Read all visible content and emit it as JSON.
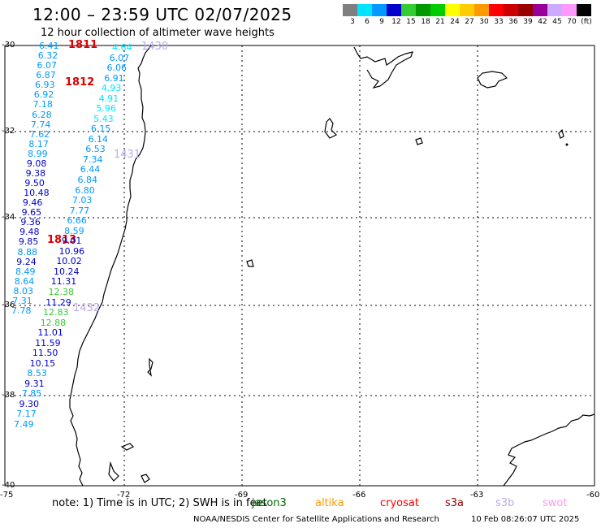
{
  "title": "12:00 – 23:59 UTC 02/07/2025",
  "subtitle": "12 hour collection of altimeter wave heights",
  "scale": {
    "colors": [
      "#7f7f7f",
      "#00e5ff",
      "#0099ff",
      "#0000cc",
      "#33cc33",
      "#009900",
      "#00cc00",
      "#ffff00",
      "#ffcc00",
      "#ff9900",
      "#ff0000",
      "#cc0000",
      "#990000",
      "#990099",
      "#ccaaff",
      "#ff99ff",
      "#000000"
    ],
    "labels": [
      "3",
      "6",
      "9",
      "12",
      "15",
      "18",
      "21",
      "24",
      "27",
      "30",
      "33",
      "36",
      "39",
      "42",
      "45",
      "70",
      "(ft)"
    ]
  },
  "lat_labels": [
    "-30",
    "-32",
    "-34",
    "-36",
    "-38",
    "-40"
  ],
  "lon_labels": [
    "-75",
    "-72",
    "-69",
    "-66",
    "-63",
    "-60"
  ],
  "pass_times": [
    {
      "text": "1811",
      "color": "#dd0000"
    },
    {
      "text": "1812",
      "color": "#dd0000"
    },
    {
      "text": "1813",
      "color": "#dd0000"
    },
    {
      "text": "1430",
      "color": "#bbaaee"
    },
    {
      "text": "1431",
      "color": "#bbaaee"
    },
    {
      "text": "1432",
      "color": "#bbaaee"
    }
  ],
  "track_cryosat": [
    "6.41",
    "6.32",
    "6.07",
    "6.87",
    "6.93",
    "6.92",
    "7.18",
    "6.28",
    "7.74",
    "7.62",
    "8.17",
    "8.99",
    "9.08",
    "9.38",
    "9.50",
    "10.48",
    "9.46",
    "9.65",
    "9.36",
    "9.48",
    "9.85",
    "8.88",
    "9.24",
    "8.49",
    "8.64",
    "8.03",
    "7.31",
    "7.78"
  ],
  "track_s3b": [
    "4.64",
    "6.07",
    "6.06",
    "6.91",
    "4.93",
    "4.91",
    "5.96",
    "5.43",
    "6.15",
    "6.14",
    "6.53",
    "7.34",
    "6.44",
    "6.84",
    "6.80",
    "7.03",
    "7.77",
    "6.66",
    "8.59",
    "9.01",
    "10.96",
    "10.02",
    "10.24",
    "11.31",
    "12.38",
    "11.29",
    "12.83",
    "12.88",
    "11.01",
    "11.59",
    "11.50",
    "10.15",
    "8.53",
    "9.31",
    "7.85",
    "9.30",
    "7.17",
    "7.49"
  ],
  "note": "note:  1) Time is in UTC; 2) SWH is in feet",
  "satellites": [
    {
      "name": "jason3",
      "color": "#006600"
    },
    {
      "name": "altika",
      "color": "#ff9900"
    },
    {
      "name": "cryosat",
      "color": "#ff0000"
    },
    {
      "name": "s3a",
      "color": "#990000"
    },
    {
      "name": "s3b",
      "color": "#bbaaee"
    },
    {
      "name": "swot",
      "color": "#ff99ee"
    }
  ],
  "credit": "NOAA/NESDIS Center for Satellite Applications and Research",
  "timestamp": "10 Feb 08:26:07 UTC 2025"
}
